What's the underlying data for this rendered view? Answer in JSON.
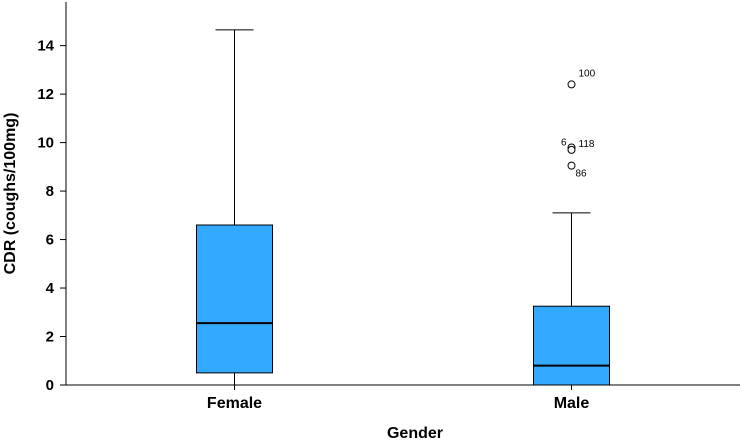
{
  "chart_data": {
    "type": "boxplot",
    "title": "",
    "xlabel": "Gender",
    "ylabel": "CDR (coughs/100mg)",
    "ylim": [
      0,
      15.8
    ],
    "yticks": [
      0,
      2,
      4,
      6,
      8,
      10,
      12,
      14
    ],
    "categories": [
      "Female",
      "Male"
    ],
    "box_color": "#33aaff",
    "grid": false,
    "boxes": [
      {
        "category": "Female",
        "min": 0,
        "q1": 0.5,
        "median": 2.55,
        "q3": 6.6,
        "max": 14.65,
        "outliers": []
      },
      {
        "category": "Male",
        "min": 0,
        "q1": 0,
        "median": 0.8,
        "q3": 3.25,
        "max": 7.1,
        "outliers": [
          {
            "value": 12.4,
            "label": "100"
          },
          {
            "value": 9.8,
            "label": "6"
          },
          {
            "value": 9.7,
            "label": "118"
          },
          {
            "value": 9.05,
            "label": "86"
          }
        ]
      }
    ]
  }
}
